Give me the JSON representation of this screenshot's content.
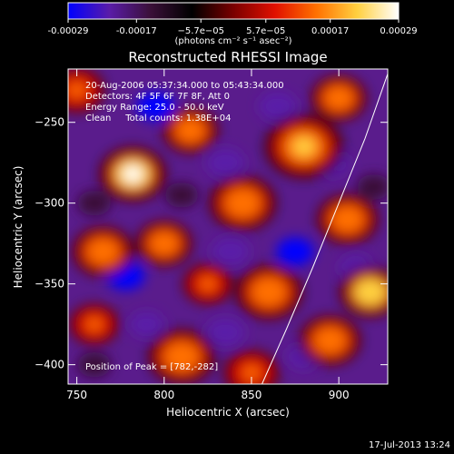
{
  "colorbar": {
    "ticks": [
      "-0.00029",
      "-0.00017",
      "−5.7e−05",
      "5.7e−05",
      "0.00017",
      "0.00029"
    ],
    "tick_values": [
      -0.00029,
      -0.00017,
      -5.7e-05,
      5.7e-05,
      0.00017,
      0.00029
    ],
    "range": [
      -0.00029,
      0.00029
    ],
    "unit_label": "(photons cm⁻² s⁻¹ asec⁻²)",
    "colors": [
      "#0000ff",
      "#5a1ca8",
      "#3a1038",
      "#000000",
      "#7a0000",
      "#e01000",
      "#ff7000",
      "#ffd040",
      "#ffffff"
    ]
  },
  "chart_data": {
    "type": "heatmap",
    "title": "Reconstructed RHESSI Image",
    "xlabel": "Heliocentric X (arcsec)",
    "ylabel": "Heliocentric Y (arcsec)",
    "xlim": [
      745,
      928
    ],
    "ylim": [
      -412,
      -217
    ],
    "xticks": [
      750,
      800,
      850,
      900
    ],
    "yticks": [
      -250,
      -300,
      -350,
      -400
    ],
    "annotations": {
      "time_range": "20-Aug-2006 05:37:34.000 to 05:43:34.000",
      "detectors": "Detectors: 4F 5F 6F 7F 8F, Att 0",
      "energy": "Energy Range: 25.0 - 50.0 keV",
      "method": "Clean     Total counts: 1.38E+04",
      "peak": "Position of Peak = [782,-282]"
    },
    "peak_position": [
      782,
      -282
    ],
    "limb_curve": [
      [
        856,
        -412
      ],
      [
        870,
        -378
      ],
      [
        885,
        -340
      ],
      [
        900,
        -300
      ],
      [
        915,
        -260
      ],
      [
        928,
        -220
      ]
    ],
    "hot_blobs": [
      {
        "x": 782,
        "y": -282,
        "r": 12,
        "v": 0.00029
      },
      {
        "x": 880,
        "y": -265,
        "r": 14,
        "v": 0.00021
      },
      {
        "x": 765,
        "y": -330,
        "r": 11,
        "v": 0.00018
      },
      {
        "x": 800,
        "y": -325,
        "r": 10,
        "v": 0.00016
      },
      {
        "x": 815,
        "y": -255,
        "r": 10,
        "v": 0.00014
      },
      {
        "x": 810,
        "y": -395,
        "r": 12,
        "v": 0.00017
      },
      {
        "x": 895,
        "y": -385,
        "r": 11,
        "v": 0.00016
      },
      {
        "x": 918,
        "y": -355,
        "r": 11,
        "v": 0.00024
      },
      {
        "x": 860,
        "y": -355,
        "r": 12,
        "v": 0.00014
      },
      {
        "x": 845,
        "y": -300,
        "r": 12,
        "v": 0.00013
      },
      {
        "x": 905,
        "y": -310,
        "r": 11,
        "v": 0.00015
      },
      {
        "x": 750,
        "y": -230,
        "r": 10,
        "v": 0.00012
      },
      {
        "x": 850,
        "y": -405,
        "r": 10,
        "v": 0.00012
      },
      {
        "x": 825,
        "y": -350,
        "r": 9,
        "v": 0.00012
      },
      {
        "x": 900,
        "y": -235,
        "r": 10,
        "v": 0.00013
      },
      {
        "x": 760,
        "y": -375,
        "r": 9,
        "v": 0.00011
      }
    ],
    "cold_blobs": [
      {
        "x": 795,
        "y": -240,
        "r": 9,
        "v": -0.00026
      },
      {
        "x": 835,
        "y": -275,
        "r": 9,
        "v": -0.00024
      },
      {
        "x": 865,
        "y": -240,
        "r": 9,
        "v": -0.00022
      },
      {
        "x": 895,
        "y": -275,
        "r": 9,
        "v": -0.00024
      },
      {
        "x": 778,
        "y": -345,
        "r": 9,
        "v": -0.00026
      },
      {
        "x": 838,
        "y": -330,
        "r": 9,
        "v": -0.00022
      },
      {
        "x": 875,
        "y": -330,
        "r": 9,
        "v": -0.00026
      },
      {
        "x": 910,
        "y": -340,
        "r": 8,
        "v": -0.0002
      },
      {
        "x": 790,
        "y": -375,
        "r": 8,
        "v": -0.0002
      },
      {
        "x": 835,
        "y": -380,
        "r": 9,
        "v": -0.00022
      },
      {
        "x": 880,
        "y": -395,
        "r": 8,
        "v": -0.0002
      },
      {
        "x": 760,
        "y": -300,
        "r": 8,
        "v": -0.00018
      },
      {
        "x": 810,
        "y": -295,
        "r": 8,
        "v": -0.00016
      },
      {
        "x": 920,
        "y": -290,
        "r": 8,
        "v": -0.00018
      },
      {
        "x": 760,
        "y": -400,
        "r": 8,
        "v": -0.00016
      }
    ]
  },
  "footer": {
    "timestamp": "17-Jul-2013 13:24"
  }
}
